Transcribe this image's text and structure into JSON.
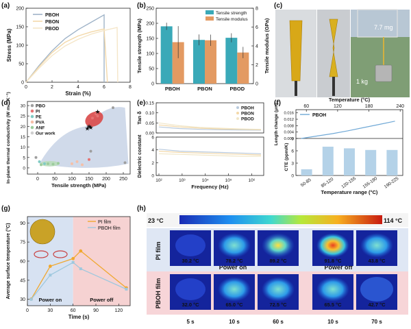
{
  "panels": {
    "a": "(a)",
    "b": "(b)",
    "c": "(c)",
    "d": "(d)",
    "e": "(e)",
    "f": "(f)",
    "g": "(g)",
    "h": "(h)"
  },
  "chart_data": [
    {
      "id": "a",
      "type": "line",
      "xlabel": "Strain (%)",
      "ylabel": "Stress (MPa)",
      "xlim": [
        0,
        8
      ],
      "ylim": [
        0,
        200
      ],
      "xticks": [
        "0",
        "2",
        "4",
        "6",
        "8"
      ],
      "yticks": [
        "0",
        "50",
        "100",
        "150",
        "200"
      ],
      "series": [
        {
          "name": "PBOH",
          "color": "#9fb3c8",
          "points": [
            [
              0,
              0
            ],
            [
              1,
              45
            ],
            [
              2,
              85
            ],
            [
              3,
              118
            ],
            [
              4,
              142
            ],
            [
              5,
              162
            ],
            [
              6,
              182
            ],
            [
              6.0,
              0
            ]
          ]
        },
        {
          "name": "PBON",
          "color": "#f3d8a8",
          "points": [
            [
              0,
              0
            ],
            [
              1,
              42
            ],
            [
              2,
              80
            ],
            [
              3,
              108
            ],
            [
              4,
              125
            ],
            [
              5,
              136
            ],
            [
              6,
              144
            ],
            [
              6.25,
              0
            ]
          ]
        },
        {
          "name": "PBOD",
          "color": "#f5e6c8",
          "points": [
            [
              0,
              0
            ],
            [
              1,
              38
            ],
            [
              2,
              72
            ],
            [
              3,
              98
            ],
            [
              4,
              116
            ],
            [
              5,
              130
            ],
            [
              6,
              140
            ],
            [
              7,
              148
            ],
            [
              7.05,
              0
            ]
          ]
        }
      ]
    },
    {
      "id": "b",
      "type": "bar",
      "categories": [
        "PBOH",
        "PBON",
        "PBOD"
      ],
      "ylabel": "Tensile strength (MPa)",
      "y2label": "Tensile modulus (GPa)",
      "ylim": [
        0,
        250
      ],
      "y2lim": [
        0,
        8
      ],
      "yticks": [
        "0",
        "50",
        "100",
        "150",
        "200",
        "250"
      ],
      "y2ticks": [
        "0",
        "2",
        "4",
        "6",
        "8"
      ],
      "series": [
        {
          "name": "Tensile strength",
          "color": "#3aa9b8",
          "values": [
            190,
            145,
            152
          ],
          "errors": [
            12,
            18,
            15
          ]
        },
        {
          "name": "Tensile modulus",
          "color": "#e39a62",
          "values": [
            4.4,
            4.6,
            3.3
          ],
          "errors": [
            1.7,
            0.6,
            0.6
          ]
        }
      ]
    },
    {
      "id": "d",
      "type": "scatter",
      "xlabel": "Tensile strength (MPa)",
      "ylabel": "In-plane thermal conductivity (W m⁻¹ K⁻¹)",
      "xlim": [
        -30,
        270
      ],
      "ylim": [
        -3,
        32
      ],
      "xticks": [
        "0",
        "50",
        "100",
        "150",
        "200",
        "250"
      ],
      "yticks": [
        "0",
        "5",
        "10",
        "15",
        "20",
        "25",
        "30"
      ],
      "legend": [
        {
          "name": "PBO",
          "color": "#9e9e9e"
        },
        {
          "name": "PI",
          "color": "#e57373"
        },
        {
          "name": "PE",
          "color": "#80cbc4"
        },
        {
          "name": "PVA",
          "color": "#f5c0a8"
        },
        {
          "name": "ANF",
          "color": "#9ccc9c"
        },
        {
          "name": "Our work",
          "color": "#cfcfcf"
        }
      ],
      "points": [
        {
          "s": "PBO",
          "x": 220,
          "y": 29
        },
        {
          "s": "PBO",
          "x": 155,
          "y": 8
        },
        {
          "s": "PBO",
          "x": 255,
          "y": 2.5
        },
        {
          "s": "PBO",
          "x": -5,
          "y": 5
        },
        {
          "s": "PI",
          "x": 160,
          "y": 24
        },
        {
          "s": "PI",
          "x": 170,
          "y": 26
        },
        {
          "s": "PI",
          "x": 175,
          "y": 25
        },
        {
          "s": "PI",
          "x": 150,
          "y": 4
        },
        {
          "s": "PE",
          "x": 5,
          "y": 3
        },
        {
          "s": "PE",
          "x": 20,
          "y": 2
        },
        {
          "s": "PVA",
          "x": 100,
          "y": 2
        },
        {
          "s": "PVA",
          "x": 115,
          "y": 3
        },
        {
          "s": "PVA",
          "x": 130,
          "y": 1.5
        },
        {
          "s": "ANF",
          "x": 10,
          "y": 1.5
        },
        {
          "s": "ANF",
          "x": 30,
          "y": 2
        },
        {
          "s": "ANF",
          "x": 45,
          "y": 1.8
        },
        {
          "s": "ANF",
          "x": 60,
          "y": 2.2
        },
        {
          "s": "Our work",
          "x": 145,
          "y": 19
        },
        {
          "s": "Our work",
          "x": 150,
          "y": 20
        },
        {
          "s": "Our work",
          "x": 155,
          "y": 19.5
        },
        {
          "s": "Our work",
          "x": 175,
          "y": 27
        }
      ]
    },
    {
      "id": "e",
      "type": "line",
      "xlabel": "Frequency (Hz)",
      "ylabel_top": "Tan δ",
      "ylabel_bottom": "Dielectric constant",
      "xticks": [
        "10²",
        "10³",
        "10⁴",
        "10⁵",
        "10⁶"
      ],
      "top": {
        "ylim": [
          0,
          0.15
        ],
        "yticks": [
          "0.00",
          "0.05",
          "0.10",
          "0.15"
        ],
        "series": [
          {
            "name": "PBOH",
            "color": "#b8c9dc",
            "values": [
              0.03,
              0.022,
              0.018,
              0.016,
              0.015,
              0.014
            ]
          },
          {
            "name": "PBON",
            "color": "#f3d8a8",
            "values": [
              0.04,
              0.03,
              0.024,
              0.02,
              0.018,
              0.016
            ]
          },
          {
            "name": "PBOD",
            "color": "#f0e6c8",
            "values": [
              0.05,
              0.036,
              0.028,
              0.024,
              0.02,
              0.018
            ]
          }
        ]
      },
      "bottom": {
        "ylim": [
          0,
          6
        ],
        "yticks": [
          "0",
          "2",
          "4",
          "6"
        ],
        "series": [
          {
            "name": "PBOH",
            "color": "#b8c9dc",
            "values": [
              4.1,
              3.8,
              3.7,
              3.6,
              3.5,
              3.4
            ]
          },
          {
            "name": "PBON",
            "color": "#f3d8a8",
            "values": [
              3.8,
              3.6,
              3.5,
              3.4,
              3.3,
              3.2
            ]
          },
          {
            "name": "PBOD",
            "color": "#f0e6c8",
            "values": [
              3.4,
              3.3,
              3.2,
              3.1,
              3.0,
              3.0
            ]
          }
        ]
      },
      "legend": [
        "PBOH",
        "PBON",
        "PBOD"
      ]
    },
    {
      "id": "f",
      "type": "line+bar",
      "top": {
        "xlabel": "Temperature (°C)",
        "ylabel": "Length change (μm)",
        "xticks": [
          "60",
          "120",
          "180",
          "240"
        ],
        "yticks": [
          "0.000",
          "0.004",
          "0.008",
          "0.012",
          "0.016"
        ],
        "series": [
          {
            "name": "PBOH",
            "color": "#6fa8d6",
            "x": [
              50,
              80,
              110,
              140,
              170,
              200,
              230
            ],
            "values": [
              0.0,
              0.0015,
              0.003,
              0.0048,
              0.0068,
              0.0088,
              0.0108
            ]
          }
        ]
      },
      "bottom": {
        "type": "bar",
        "xlabel": "Temperature range (°C)",
        "ylabel": "CTE (ppm/K)",
        "categories": [
          "50-85",
          "85-120",
          "120-155",
          "155-190",
          "190-225"
        ],
        "values": [
          1.5,
          7.0,
          6.6,
          6.2,
          6.2
        ],
        "ylim": [
          0,
          9
        ],
        "yticks": [
          "0",
          "3",
          "6",
          "9"
        ],
        "color": "#b4d2e8"
      }
    },
    {
      "id": "g",
      "type": "line",
      "xlabel": "Time (s)",
      "ylabel": "Average surface temperature (°C)",
      "xticks": [
        "0",
        "30",
        "60",
        "90",
        "120"
      ],
      "yticks": [
        "30",
        "45",
        "60",
        "75",
        "90"
      ],
      "xlim": [
        0,
        135
      ],
      "ylim": [
        25,
        95
      ],
      "regions": [
        {
          "label": "Power on",
          "from": 0,
          "to": 60,
          "color": "#d7e2f2"
        },
        {
          "label": "Power off",
          "from": 60,
          "to": 135,
          "color": "#f6d2d2"
        }
      ],
      "series": [
        {
          "name": "PI film",
          "color": "#f0a830",
          "x": [
            5,
            30,
            60,
            70,
            130
          ],
          "values": [
            30.2,
            56,
            62,
            68,
            39
          ]
        },
        {
          "name": "PBOH film",
          "color": "#9ec8de",
          "x": [
            5,
            30,
            60,
            70,
            130
          ],
          "values": [
            30,
            49,
            59,
            54,
            38
          ]
        }
      ]
    }
  ],
  "panel_c": {
    "label_mass": "7.7 mg",
    "label_weight": "1 kg"
  },
  "panel_h": {
    "scale_min": "23 °C",
    "scale_max": "114 °C",
    "row_labels": [
      "PI film",
      "PBOH film"
    ],
    "power_on": "Power on",
    "power_off": "Power off",
    "time_labels": [
      "5 s",
      "10 s",
      "60 s",
      "10 s",
      "70 s"
    ],
    "pi_temps": [
      "30.2 °C",
      "78.2 °C",
      "89.2 °C",
      "91.8 °C",
      "43.8 °C"
    ],
    "pboh_temps": [
      "32.0 °C",
      "65.0 °C",
      "72.5 °C",
      "65.5 °C",
      "42.7 °C"
    ]
  }
}
